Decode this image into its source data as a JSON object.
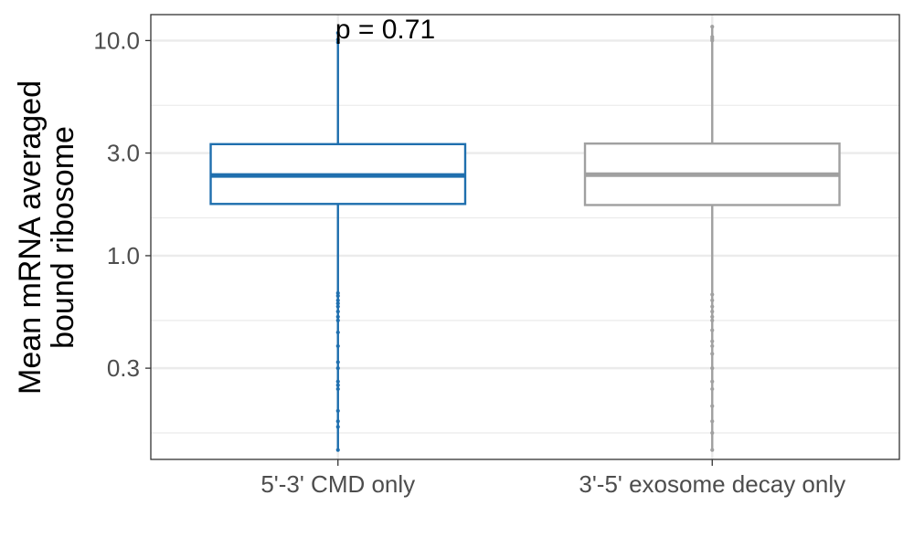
{
  "chart_data": {
    "type": "box",
    "title": "",
    "xlabel": "",
    "ylabel_lines": [
      "Mean mRNA averaged",
      "bound ribosome"
    ],
    "y_scale": "log10",
    "ylim": [
      0.113,
      13.2
    ],
    "y_ticks": [
      {
        "value": 0.3,
        "label": "0.3"
      },
      {
        "value": 1.0,
        "label": "1.0"
      },
      {
        "value": 3.0,
        "label": "3.0"
      },
      {
        "value": 10.0,
        "label": "10.0"
      }
    ],
    "y_minor_gridlines": [
      0.15,
      0.5,
      1.5,
      5.0
    ],
    "grid": true,
    "annotation": {
      "text": "p = 0.71",
      "value": 11.3
    },
    "categories": [
      "5'-3' CMD only",
      "3'-5' exosome decay only"
    ],
    "series": [
      {
        "category": "5'-3' CMD only",
        "color": "#1f6fae",
        "q1": 1.74,
        "median": 2.36,
        "q3": 3.3,
        "whisker_low": 0.125,
        "whisker_high": 10.85,
        "outliers": [
          0.125,
          0.16,
          0.17,
          0.19,
          0.24,
          0.25,
          0.26,
          0.3,
          0.32,
          0.38,
          0.44,
          0.5,
          0.52,
          0.55,
          0.58,
          0.6,
          0.62,
          0.65,
          0.67,
          9.8,
          10.1,
          10.85
        ]
      },
      {
        "category": "3'-5' exosome decay only",
        "color": "#a0a0a0",
        "q1": 1.72,
        "median": 2.38,
        "q3": 3.32,
        "whisker_low": 0.125,
        "whisker_high": 11.6,
        "outliers": [
          0.125,
          0.15,
          0.17,
          0.2,
          0.24,
          0.26,
          0.3,
          0.35,
          0.38,
          0.4,
          0.45,
          0.5,
          0.52,
          0.55,
          0.58,
          0.62,
          0.66,
          10.0,
          10.2,
          10.4,
          11.6
        ]
      }
    ]
  }
}
